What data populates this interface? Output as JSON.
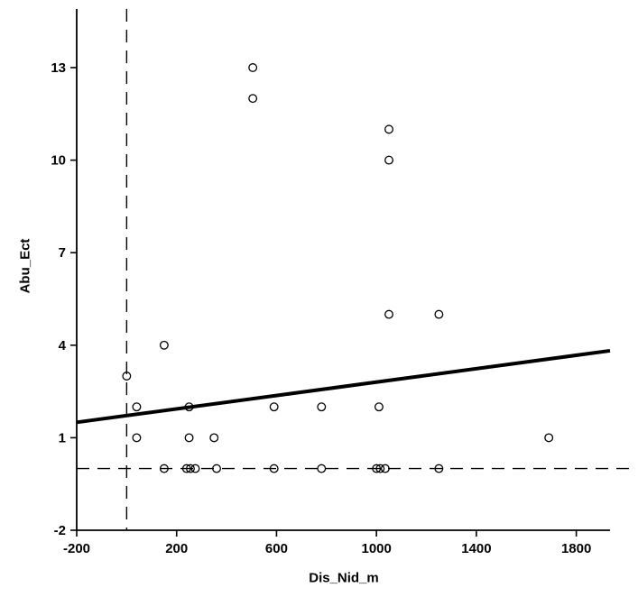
{
  "page": {
    "background_color": "#ffffff",
    "foreground_color": "#000000"
  },
  "chart_data": {
    "type": "scatter",
    "title": "",
    "xlabel": "Dis_Nid_m",
    "ylabel": "Abu_Ect",
    "xlim": [
      -200,
      1935
    ],
    "ylim": [
      -2,
      14.9
    ],
    "x_ticks": [
      -200,
      200,
      600,
      1000,
      1400,
      1800
    ],
    "y_ticks": [
      -2,
      1,
      4,
      7,
      10,
      13
    ],
    "grid": false,
    "legend": "none",
    "marker": {
      "shape": "open-circle",
      "radius": 4.3,
      "color": "#000000"
    },
    "points": [
      [
        0,
        3
      ],
      [
        40,
        2
      ],
      [
        40,
        1
      ],
      [
        150,
        4
      ],
      [
        150,
        0
      ],
      [
        240,
        0
      ],
      [
        255,
        0
      ],
      [
        275,
        0
      ],
      [
        250,
        2
      ],
      [
        250,
        1
      ],
      [
        350,
        1
      ],
      [
        360,
        0
      ],
      [
        505,
        13
      ],
      [
        505,
        12
      ],
      [
        590,
        2
      ],
      [
        590,
        0
      ],
      [
        780,
        2
      ],
      [
        780,
        0
      ],
      [
        1000,
        0
      ],
      [
        1015,
        0
      ],
      [
        1035,
        0
      ],
      [
        1010,
        2
      ],
      [
        1050,
        11
      ],
      [
        1050,
        10
      ],
      [
        1050,
        5
      ],
      [
        1250,
        5
      ],
      [
        1250,
        0
      ],
      [
        1690,
        1
      ]
    ],
    "trend_line": {
      "type": "linear-fit",
      "x1": -200,
      "y1": 1.5,
      "x2": 1935,
      "y2": 3.82,
      "color": "#000000",
      "width": 4
    },
    "reference_lines": [
      {
        "orientation": "vertical",
        "x": 0,
        "style": "long-dash"
      },
      {
        "orientation": "horizontal",
        "y": 0,
        "style": "long-dash"
      }
    ]
  }
}
